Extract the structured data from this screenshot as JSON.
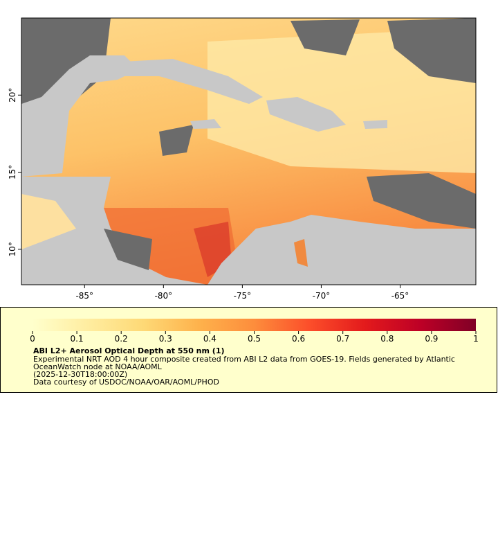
{
  "map": {
    "xlim": [
      -89,
      -60.2
    ],
    "ylim": [
      7.7,
      25
    ],
    "xticks": [
      {
        "value": -85,
        "label": "-85°"
      },
      {
        "value": -80,
        "label": "-80°"
      },
      {
        "value": -75,
        "label": "-75°"
      },
      {
        "value": -70,
        "label": "-70°"
      },
      {
        "value": -65,
        "label": "-65°"
      }
    ],
    "yticks": [
      {
        "value": 10,
        "label": "10°"
      },
      {
        "value": 15,
        "label": "15°"
      },
      {
        "value": 20,
        "label": "20°"
      }
    ]
  },
  "colorbar": {
    "lim": [
      0,
      1
    ],
    "ticks": [
      0,
      0.1,
      0.2,
      0.3,
      0.4,
      0.5,
      0.6,
      0.7,
      0.8,
      0.9,
      1
    ],
    "colors": [
      "#ffffcc",
      "#ffeda0",
      "#fed976",
      "#feb24c",
      "#fd8d3c",
      "#fc4e2a",
      "#e31a1c",
      "#bd0026",
      "#800026"
    ]
  },
  "legend": {
    "title": "ABI L2+ Aerosol Optical Depth at 550 nm (1)",
    "lines": [
      "Experimental NRT AOD 4 hour composite created from ABI L2 data from GOES-19. Fields generated by Atlantic",
      "OceanWatch node at NOAA/AOML",
      "(2025-12-30T18:00:00Z)",
      "Data courtesy of USDOC/NOAA/OAR/AOML/PHOD"
    ]
  }
}
